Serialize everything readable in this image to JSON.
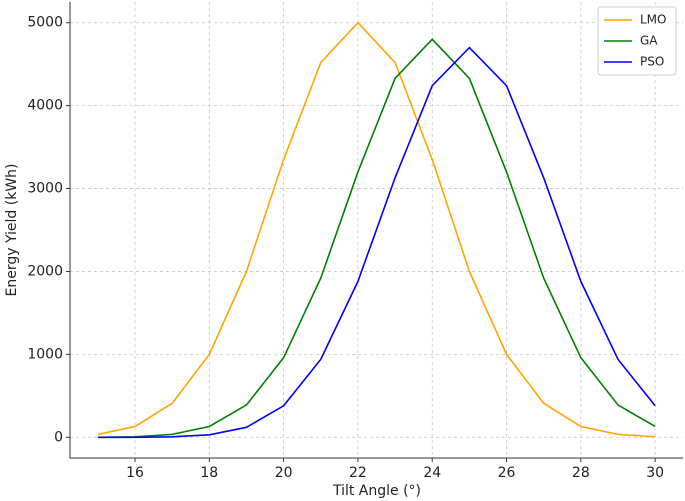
{
  "chart_data": {
    "type": "line",
    "x_label": "Tilt Angle (°)",
    "y_label": "Energy Yield (kWh)",
    "x": [
      15,
      16,
      17,
      18,
      19,
      20,
      21,
      22,
      23,
      24,
      25,
      26,
      27,
      28,
      29,
      30
    ],
    "series": [
      {
        "name": "LMO",
        "color": "#ffa500",
        "values": [
          35,
          130,
          410,
          1000,
          2000,
          3350,
          4520,
          5000,
          4520,
          3350,
          2000,
          1000,
          410,
          130,
          35,
          5
        ]
      },
      {
        "name": "GA",
        "color": "#008000",
        "values": [
          0,
          5,
          35,
          130,
          390,
          960,
          1920,
          3200,
          4330,
          4800,
          4330,
          3200,
          1920,
          960,
          390,
          130
        ]
      },
      {
        "name": "PSO",
        "color": "#0000ff",
        "values": [
          0,
          0,
          5,
          30,
          120,
          380,
          940,
          1880,
          3130,
          4240,
          4700,
          4240,
          3130,
          1880,
          940,
          380
        ]
      }
    ],
    "xlim": [
      14.25,
      30.75
    ],
    "ylim": [
      -250,
      5250
    ],
    "xticks": [
      16,
      18,
      20,
      22,
      24,
      26,
      28,
      30
    ],
    "yticks": [
      0,
      1000,
      2000,
      3000,
      4000,
      5000
    ],
    "grid": true,
    "legend": "upper right"
  }
}
